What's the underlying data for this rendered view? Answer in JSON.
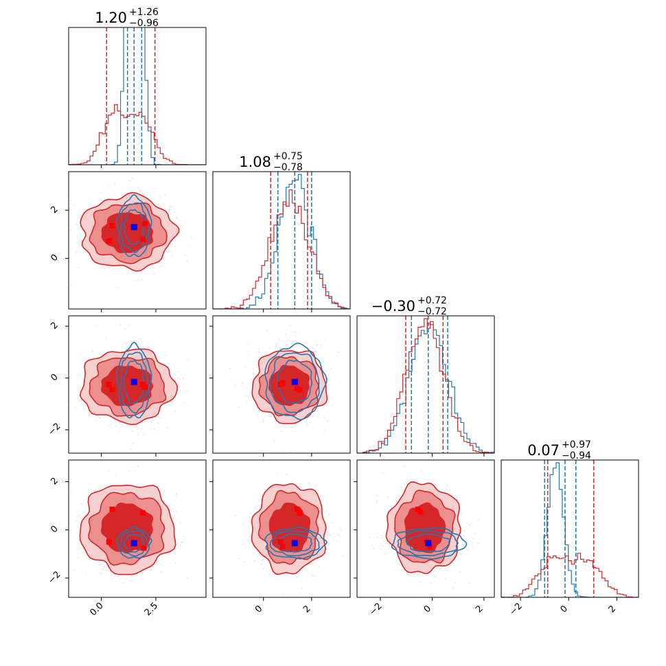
{
  "chart_data": {
    "type": "corner",
    "parameters": [
      {
        "title": {
          "value": "1.20",
          "plus": "+1.26",
          "minus": "−0.96"
        },
        "range": [
          -1.5,
          4.8
        ],
        "ticks": [
          {
            "v": 0.0,
            "label": "0.0"
          },
          {
            "v": 2.5,
            "label": "2.5"
          }
        ]
      },
      {
        "title": {
          "value": "1.08",
          "plus": "+0.75",
          "minus": "−0.78"
        },
        "range": [
          -2.1,
          3.6
        ],
        "ticks": [
          {
            "v": 0,
            "label": "0"
          },
          {
            "v": 2,
            "label": "2"
          }
        ]
      },
      {
        "title": {
          "value": "−0.30",
          "plus": "+0.72",
          "minus": "−0.72"
        },
        "range": [
          -2.9,
          2.4
        ],
        "ticks": [
          {
            "v": -2,
            "label": "−2"
          },
          {
            "v": 0,
            "label": "0"
          },
          {
            "v": 2,
            "label": "2"
          }
        ]
      },
      {
        "title": {
          "value": "0.07",
          "plus": "+0.97",
          "minus": "−0.94"
        },
        "range": [
          -2.8,
          2.9
        ],
        "ticks": [
          {
            "v": -2,
            "label": "−2"
          },
          {
            "v": 0,
            "label": "0"
          },
          {
            "v": 2,
            "label": "2"
          }
        ]
      }
    ],
    "colors": {
      "red": "#d62728",
      "blue": "#1f77b4",
      "truth_blue": "#0000ff",
      "truth_red": "#ff0000"
    },
    "series": [
      {
        "color": "red",
        "means": [
          1.2,
          1.08,
          -0.3,
          0.07
        ],
        "sigmas": [
          1.1,
          0.78,
          0.72,
          0.95
        ],
        "quantiles": [
          [
            0.24,
            1.2,
            2.46
          ],
          [
            0.3,
            1.08,
            1.83
          ],
          [
            -1.02,
            -0.3,
            0.42
          ],
          [
            -0.87,
            0.07,
            1.04
          ]
        ],
        "filled_contours": true,
        "markers": [
          [
            0.5,
            1.35
          ],
          [
            2.0,
            1.45
          ],
          [
            0.4,
            0.72
          ],
          [
            1.9,
            0.8
          ],
          [
            0.5,
            -0.25
          ],
          [
            0.6,
            -0.45
          ],
          [
            2.0,
            -0.3
          ],
          [
            0.55,
            0.85
          ],
          [
            1.95,
            0.7
          ],
          [
            0.4,
            -0.5
          ],
          [
            2.0,
            -0.75
          ]
        ]
      },
      {
        "color": "blue",
        "means": [
          1.5,
          1.3,
          -0.15,
          -0.55
        ],
        "sigmas": [
          0.4,
          0.65,
          0.74,
          0.33
        ],
        "quantiles": [
          [
            1.2,
            1.5,
            1.85
          ],
          [
            0.6,
            1.3,
            2.0
          ],
          [
            -0.8,
            -0.15,
            0.6
          ],
          [
            -1.0,
            -0.15,
            0.3
          ]
        ],
        "filled_contours": false
      }
    ],
    "truth_markers": [
      {
        "panel": [
          1,
          0
        ],
        "x": 1.5,
        "y": 1.3
      },
      {
        "panel": [
          2,
          0
        ],
        "x": 1.5,
        "y": -0.15
      },
      {
        "panel": [
          2,
          1
        ],
        "x": 1.3,
        "y": -0.15
      },
      {
        "panel": [
          3,
          0
        ],
        "x": 1.5,
        "y": -0.55
      },
      {
        "panel": [
          3,
          1
        ],
        "x": 1.3,
        "y": -0.55
      },
      {
        "panel": [
          3,
          2
        ],
        "x": -0.15,
        "y": -0.55
      }
    ],
    "red_point_markers": [
      {
        "panel": [
          1,
          0
        ],
        "pts": [
          [
            0.5,
            1.35
          ],
          [
            2.0,
            1.45
          ],
          [
            0.35,
            0.72
          ],
          [
            1.9,
            0.8
          ]
        ]
      },
      {
        "panel": [
          2,
          0
        ],
        "pts": [
          [
            0.35,
            -0.25
          ],
          [
            0.5,
            -0.45
          ],
          [
            1.9,
            -0.25
          ],
          [
            2.0,
            -0.35
          ]
        ]
      },
      {
        "panel": [
          2,
          1
        ],
        "pts": [
          [
            0.7,
            -0.25
          ],
          [
            0.8,
            -0.2
          ],
          [
            1.4,
            -0.4
          ],
          [
            1.5,
            -0.45
          ]
        ]
      },
      {
        "panel": [
          3,
          0
        ],
        "pts": [
          [
            0.5,
            0.85
          ],
          [
            1.9,
            0.7
          ],
          [
            0.35,
            -0.5
          ],
          [
            1.95,
            -0.75
          ]
        ]
      },
      {
        "panel": [
          3,
          1
        ],
        "pts": [
          [
            0.7,
            -0.5
          ],
          [
            0.8,
            -0.7
          ],
          [
            1.4,
            0.85
          ],
          [
            1.5,
            0.7
          ]
        ]
      },
      {
        "panel": [
          3,
          2
        ],
        "pts": [
          [
            -0.55,
            0.85
          ],
          [
            -0.45,
            0.75
          ],
          [
            -0.2,
            -0.5
          ],
          [
            -0.1,
            -0.7
          ]
        ]
      }
    ]
  }
}
